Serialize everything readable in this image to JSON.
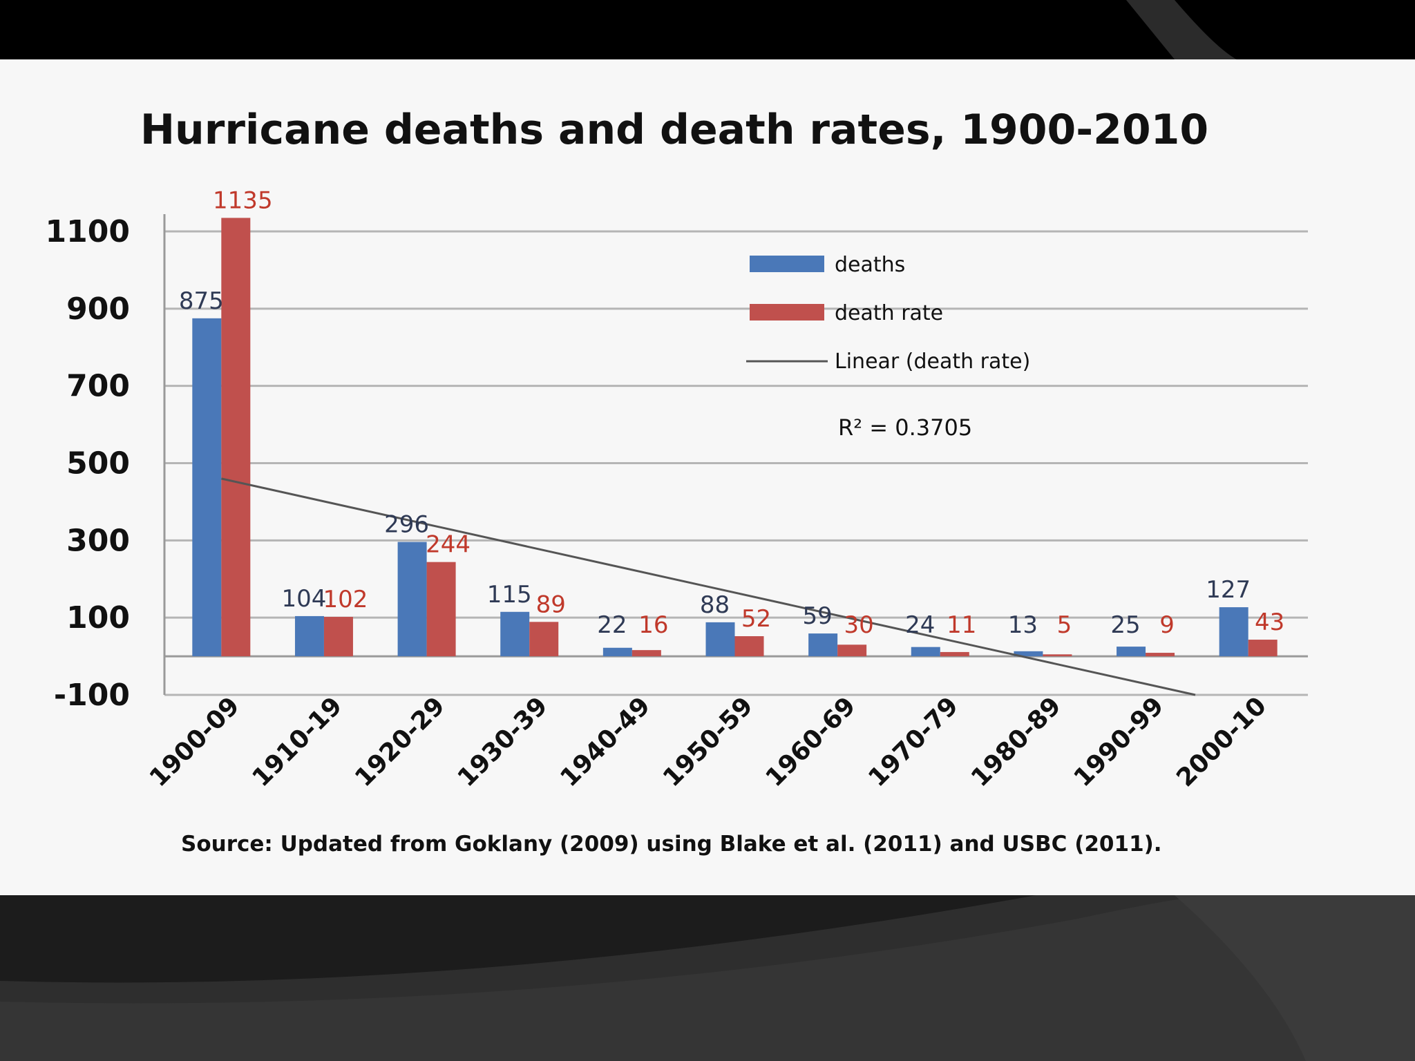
{
  "colors": {
    "deaths": "#4a78b8",
    "death_rate": "#c0504d",
    "trend": "#555555",
    "grid": "#b5b5b5"
  },
  "chart_data": {
    "type": "bar",
    "title": "Hurricane deaths and death rates, 1900-2010",
    "categories": [
      "1900-09",
      "1910-19",
      "1920-29",
      "1930-39",
      "1940-49",
      "1950-59",
      "1960-69",
      "1970-79",
      "1980-89",
      "1990-99",
      "2000-10"
    ],
    "series": [
      {
        "name": "deaths",
        "values": [
          875,
          104,
          296,
          115,
          22,
          88,
          59,
          24,
          13,
          25,
          127
        ],
        "labels": [
          "875",
          "104",
          "296",
          "115",
          "22",
          "88",
          "59",
          "24",
          "13",
          "25",
          "127"
        ]
      },
      {
        "name": "death rate",
        "values": [
          1135,
          102,
          244,
          89,
          16,
          52,
          30,
          11,
          5,
          9,
          43
        ],
        "labels": [
          "1135",
          "102",
          "244",
          "89",
          "16",
          "52",
          "30",
          "11",
          "5",
          "9",
          "43"
        ]
      }
    ],
    "trendline": {
      "name": "Linear (death rate)",
      "start": 460,
      "end": -100,
      "r_squared_label": "R² = 0.3705"
    },
    "ylim": [
      -100,
      1100
    ],
    "yticks": [
      -100,
      100,
      300,
      500,
      700,
      900,
      1100
    ],
    "ytick_labels": [
      "-100",
      "100",
      "300",
      "500",
      "700",
      "900",
      "1100"
    ],
    "legend": [
      "deaths",
      "death rate",
      "Linear (death rate)"
    ],
    "legend_position": "top-right",
    "grid": true,
    "xlabel": "",
    "ylabel": "",
    "source": "Source: Updated from Goklany (2009) using Blake et al. (2011) and USBC (2011)."
  }
}
